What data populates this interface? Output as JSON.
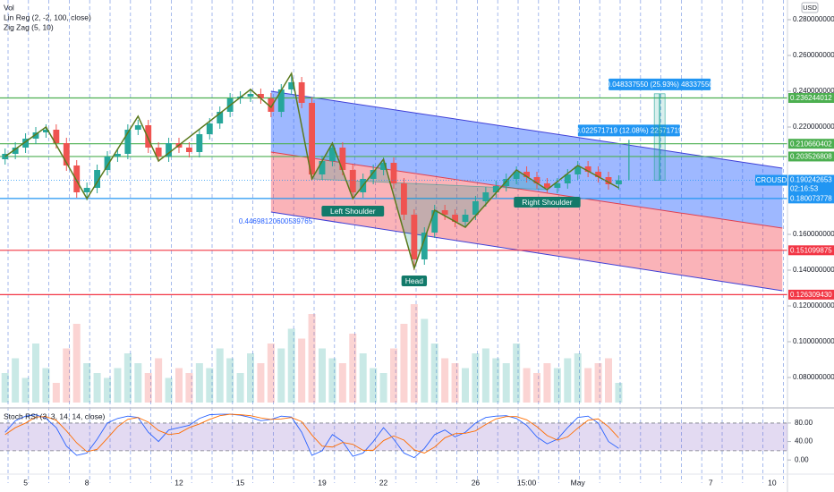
{
  "chart_data": {
    "type": "candlestick",
    "indicators": [
      "Vol",
      "Lin Reg (2, -2, 100, close)",
      "Zig Zag (5, 10)"
    ],
    "currency": "USD",
    "symbol": "CROUSD",
    "last_price": 0.190242653,
    "countdown": "02:16:53",
    "up_color": "#26a69a",
    "down_color": "#ef5350",
    "categories": [
      null,
      null,
      "5",
      null,
      null,
      null,
      null,
      null,
      "8",
      null,
      null,
      null,
      null,
      null,
      null,
      null,
      null,
      "12",
      null,
      null,
      null,
      null,
      null,
      "15",
      null,
      null,
      null,
      null,
      null,
      null,
      null,
      "19",
      null,
      null,
      null,
      null,
      null,
      "22",
      null,
      null,
      null,
      null,
      null,
      null,
      null,
      null,
      "26",
      null,
      null,
      null,
      null,
      "15:00",
      null,
      null,
      null,
      null,
      "May",
      null,
      null,
      null,
      null,
      null,
      null,
      null,
      null,
      null,
      null,
      null,
      null,
      "7",
      null,
      null,
      null,
      null,
      null,
      "10",
      null
    ],
    "open": [
      0.202,
      0.205,
      0.2085,
      0.2135,
      0.217,
      0.2185,
      0.211,
      0.1985,
      0.1835,
      0.186,
      0.196,
      0.2035,
      0.205,
      0.2185,
      0.221,
      0.2085,
      0.2035,
      0.211,
      0.2085,
      0.206,
      0.216,
      0.222,
      0.2285,
      0.236,
      0.237,
      0.2385,
      0.236,
      0.2285,
      0.241,
      0.245,
      0.2335,
      0.1935,
      0.201,
      0.2085,
      0.196,
      0.1835,
      0.191,
      0.196,
      0.2,
      0.1885,
      0.171,
      0.146,
      0.161,
      0.1735,
      0.171,
      0.167,
      0.171,
      0.1785,
      0.1835,
      0.187,
      0.191,
      0.195,
      0.192,
      0.1885,
      0.186,
      0.1885,
      0.1935,
      0.198,
      0.195,
      0.192,
      0.188,
      null,
      null,
      null,
      null,
      null,
      null,
      null,
      null,
      null,
      null,
      null,
      null,
      null,
      null,
      null,
      null
    ],
    "high": [
      0.208,
      0.2115,
      0.2165,
      0.22,
      0.2215,
      0.2215,
      0.214,
      0.2015,
      0.189,
      0.199,
      0.2065,
      0.208,
      0.2215,
      0.224,
      0.224,
      0.2115,
      0.214,
      0.214,
      0.2115,
      0.219,
      0.225,
      0.2315,
      0.239,
      0.24,
      0.2415,
      0.2415,
      0.239,
      0.244,
      0.25,
      0.248,
      0.2365,
      0.204,
      0.2115,
      0.2115,
      0.199,
      0.194,
      0.199,
      0.203,
      0.203,
      0.1915,
      0.174,
      0.164,
      0.1765,
      0.1765,
      0.174,
      0.174,
      0.1815,
      0.1865,
      0.19,
      0.194,
      0.198,
      0.198,
      0.195,
      0.1915,
      0.1915,
      0.1965,
      0.201,
      0.201,
      0.198,
      0.195,
      0.193,
      null,
      null,
      null,
      null,
      null,
      null,
      null,
      null,
      null,
      null,
      null,
      null,
      null,
      null,
      null,
      null
    ],
    "low": [
      0.199,
      0.202,
      0.2055,
      0.2105,
      0.214,
      0.208,
      0.1955,
      0.1805,
      0.179,
      0.183,
      0.193,
      0.2005,
      0.202,
      0.2155,
      0.2055,
      0.2005,
      0.2005,
      0.2055,
      0.203,
      0.203,
      0.213,
      0.219,
      0.2255,
      0.233,
      0.234,
      0.233,
      0.2255,
      0.2255,
      0.238,
      0.2305,
      0.1905,
      0.1905,
      0.198,
      0.193,
      0.1805,
      0.1805,
      0.188,
      0.193,
      0.1855,
      0.168,
      0.14,
      0.143,
      0.158,
      0.168,
      0.164,
      0.164,
      0.168,
      0.1755,
      0.1805,
      0.184,
      0.188,
      0.189,
      0.1855,
      0.183,
      0.183,
      0.1855,
      0.1905,
      0.192,
      0.189,
      0.185,
      0.185,
      null,
      null,
      null,
      null,
      null,
      null,
      null,
      null,
      null,
      null,
      null,
      null,
      null,
      null,
      null,
      null
    ],
    "close": [
      0.205,
      0.2085,
      0.2135,
      0.217,
      0.2185,
      0.211,
      0.1985,
      0.1835,
      0.186,
      0.196,
      0.2035,
      0.205,
      0.2185,
      0.221,
      0.2085,
      0.2035,
      0.211,
      0.2085,
      0.206,
      0.216,
      0.222,
      0.2285,
      0.236,
      0.237,
      0.2385,
      0.236,
      0.2285,
      0.241,
      0.245,
      0.2335,
      0.1935,
      0.201,
      0.2085,
      0.196,
      0.1835,
      0.191,
      0.196,
      0.2,
      0.1885,
      0.171,
      0.146,
      0.161,
      0.1735,
      0.171,
      0.167,
      0.171,
      0.1785,
      0.1835,
      0.187,
      0.191,
      0.195,
      0.192,
      0.1885,
      0.186,
      0.1885,
      0.1935,
      0.198,
      0.195,
      0.192,
      0.188,
      0.190242653,
      null,
      null,
      null,
      null,
      null,
      null,
      null,
      null,
      null,
      null,
      null,
      null,
      null,
      null,
      null,
      null
    ],
    "ylim": [
      0.0635,
      0.291
    ],
    "yticks": [
      {
        "value": 0.28,
        "label": "0.280000000"
      },
      {
        "value": 0.26,
        "label": "0.260000000"
      },
      {
        "value": 0.24,
        "label": "0.240000000"
      },
      {
        "value": 0.22,
        "label": "0.220000000"
      },
      {
        "value": 0.16,
        "label": "0.160000000"
      },
      {
        "value": 0.14,
        "label": "0.140000000"
      },
      {
        "value": 0.12,
        "label": "0.120000000"
      },
      {
        "value": 0.1,
        "label": "0.100000000"
      },
      {
        "value": 0.08,
        "label": "0.080000000"
      }
    ],
    "levels": [
      {
        "value": 0.236244012,
        "color": "#4caf50"
      },
      {
        "value": 0.210660402,
        "color": "#4caf50"
      },
      {
        "value": 0.203526808,
        "color": "#4caf50"
      },
      {
        "value": 0.180073778,
        "color": "#2196f3"
      },
      {
        "value": 0.151099875,
        "color": "#f23645"
      },
      {
        "value": {
          "value": 0.12630943,
          "label": "0.126309430"
        },
        "color": "#f23645"
      }
    ],
    "lin_reg": {
      "start": 26,
      "end": 76,
      "upper": [
        0.24,
        0.197
      ],
      "middle": [
        0.206,
        0.1635
      ],
      "lower": [
        0.1725,
        0.1285
      ],
      "upper_fill": "rgba(41,98,255,0.45)",
      "lower_fill": "rgba(242,54,69,0.38)",
      "line_color": "#3f3fd6",
      "correlation": {
        "value": 0.44698120600539765,
        "label": "0.44698120600539765"
      }
    },
    "zigzag": {
      "color": "#5b7a1e",
      "x": [
        0,
        4,
        8,
        13,
        15,
        24,
        26,
        28,
        30,
        32,
        34,
        37,
        40,
        42,
        45,
        50,
        53,
        56,
        60
      ],
      "values": [
        0.2035,
        0.22,
        0.18,
        0.226,
        0.201,
        0.241,
        0.231,
        0.25,
        0.191,
        0.211,
        0.18,
        0.202,
        0.141,
        0.1735,
        0.164,
        0.196,
        0.185,
        0.1985,
        0.186
      ]
    },
    "patterns": [
      {
        "label": "Left Shoulder",
        "x": 34,
        "value": 0.18
      },
      {
        "label": "Head",
        "x": 40,
        "value": 0.141
      },
      {
        "label": "Right Shoulder",
        "x": 53,
        "value": 0.185
      }
    ],
    "measurements": [
      {
        "x": 61,
        "from": 0.190242653,
        "change": 0.022571719,
        "label": "0.022571719 (12.08%) 22571719"
      },
      {
        "x": 64,
        "from": 0.190242653,
        "change": 0.04833755,
        "label": "0.048337550 (25.93%) 48337550"
      }
    ],
    "volume": {
      "ylim": [
        0,
        100
      ],
      "values": [
        30,
        45,
        25,
        60,
        35,
        20,
        55,
        80,
        40,
        30,
        25,
        35,
        50,
        40,
        30,
        45,
        25,
        35,
        30,
        40,
        35,
        55,
        45,
        30,
        50,
        40,
        60,
        55,
        75,
        65,
        90,
        55,
        45,
        40,
        70,
        50,
        35,
        30,
        55,
        80,
        100,
        85,
        60,
        45,
        40,
        35,
        50,
        55,
        45,
        40,
        60,
        35,
        30,
        40,
        35,
        45,
        50,
        35,
        40,
        45,
        20,
        null,
        null,
        null,
        null,
        null,
        null,
        null,
        null,
        null,
        null,
        null,
        null,
        null,
        null,
        null,
        null
      ]
    },
    "stoch": {
      "title": "Stoch RSI (3, 3, 14, 14, close)",
      "ylim": [
        -30.6,
        108.9
      ],
      "yticks": [
        {
          "value": 80,
          "label": "80.00"
        },
        {
          "value": 40,
          "label": "40.00"
        },
        {
          "value": 0,
          "label": "0.00"
        }
      ],
      "bands": [
        20,
        80
      ],
      "series": [
        {
          "color": "#2962ff",
          "values": [
            60,
            85,
            95,
            98,
            90,
            70,
            30,
            10,
            15,
            45,
            80,
            90,
            95,
            92,
            60,
            40,
            65,
            70,
            75,
            90,
            98,
            99,
            99,
            97,
            92,
            85,
            88,
            95,
            93,
            60,
            10,
            20,
            55,
            40,
            8,
            15,
            40,
            70,
            45,
            15,
            5,
            25,
            55,
            65,
            50,
            60,
            80,
            92,
            95,
            96,
            90,
            75,
            50,
            35,
            45,
            70,
            92,
            95,
            80,
            40,
            25,
            null,
            null,
            null,
            null,
            null,
            null,
            null,
            null,
            null,
            null,
            null,
            null,
            null,
            null,
            null,
            null
          ]
        },
        {
          "color": "#ff6d00",
          "values": [
            55,
            70,
            80,
            93,
            94,
            86,
            63,
            37,
            18,
            23,
            47,
            72,
            88,
            92,
            82,
            64,
            55,
            58,
            70,
            78,
            88,
            96,
            99,
            98,
            96,
            91,
            88,
            89,
            92,
            83,
            54,
            30,
            28,
            38,
            34,
            21,
            21,
            42,
            52,
            43,
            22,
            15,
            28,
            48,
            57,
            58,
            63,
            77,
            89,
            94,
            94,
            87,
            72,
            53,
            43,
            50,
            69,
            86,
            89,
            72,
            48,
            null,
            null,
            null,
            null,
            null,
            null,
            null,
            null,
            null,
            null,
            null,
            null,
            null,
            null,
            null,
            null
          ]
        }
      ]
    }
  }
}
